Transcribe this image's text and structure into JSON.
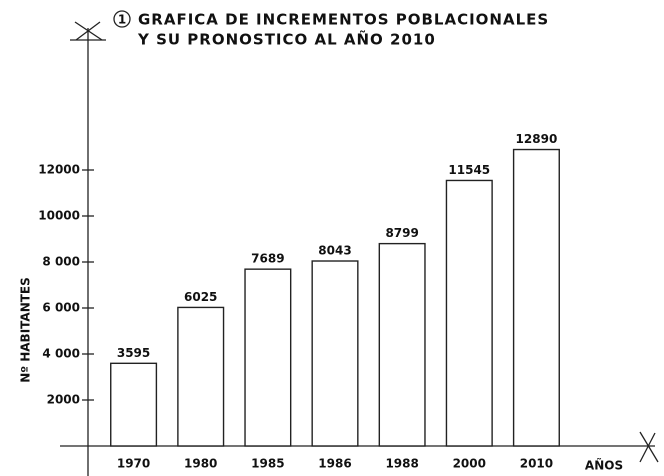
{
  "chart_data": {
    "type": "bar",
    "figure_number": "1",
    "title": "GRAFICA DE INCREMENTOS POBLACIONALES",
    "subtitle": "Y SU PRONOSTICO AL AÑO 2010",
    "y_label": "Nº HABITANTES",
    "x_label": "AÑOS",
    "categories": [
      "1970",
      "1980",
      "1985",
      "1986",
      "1988",
      "2000",
      "2010"
    ],
    "values": [
      3595,
      6025,
      7689,
      8043,
      8799,
      11545,
      12890
    ],
    "color": "#ffffff",
    "ylim": [
      0,
      14000
    ],
    "yticks": [
      2000,
      {
        "value": 4000,
        "label": "4 000"
      },
      {
        "value": 6000,
        "label": "6 000"
      },
      {
        "value": 8000,
        "label": "8 000"
      },
      10000,
      12000
    ],
    "grid": false
  }
}
